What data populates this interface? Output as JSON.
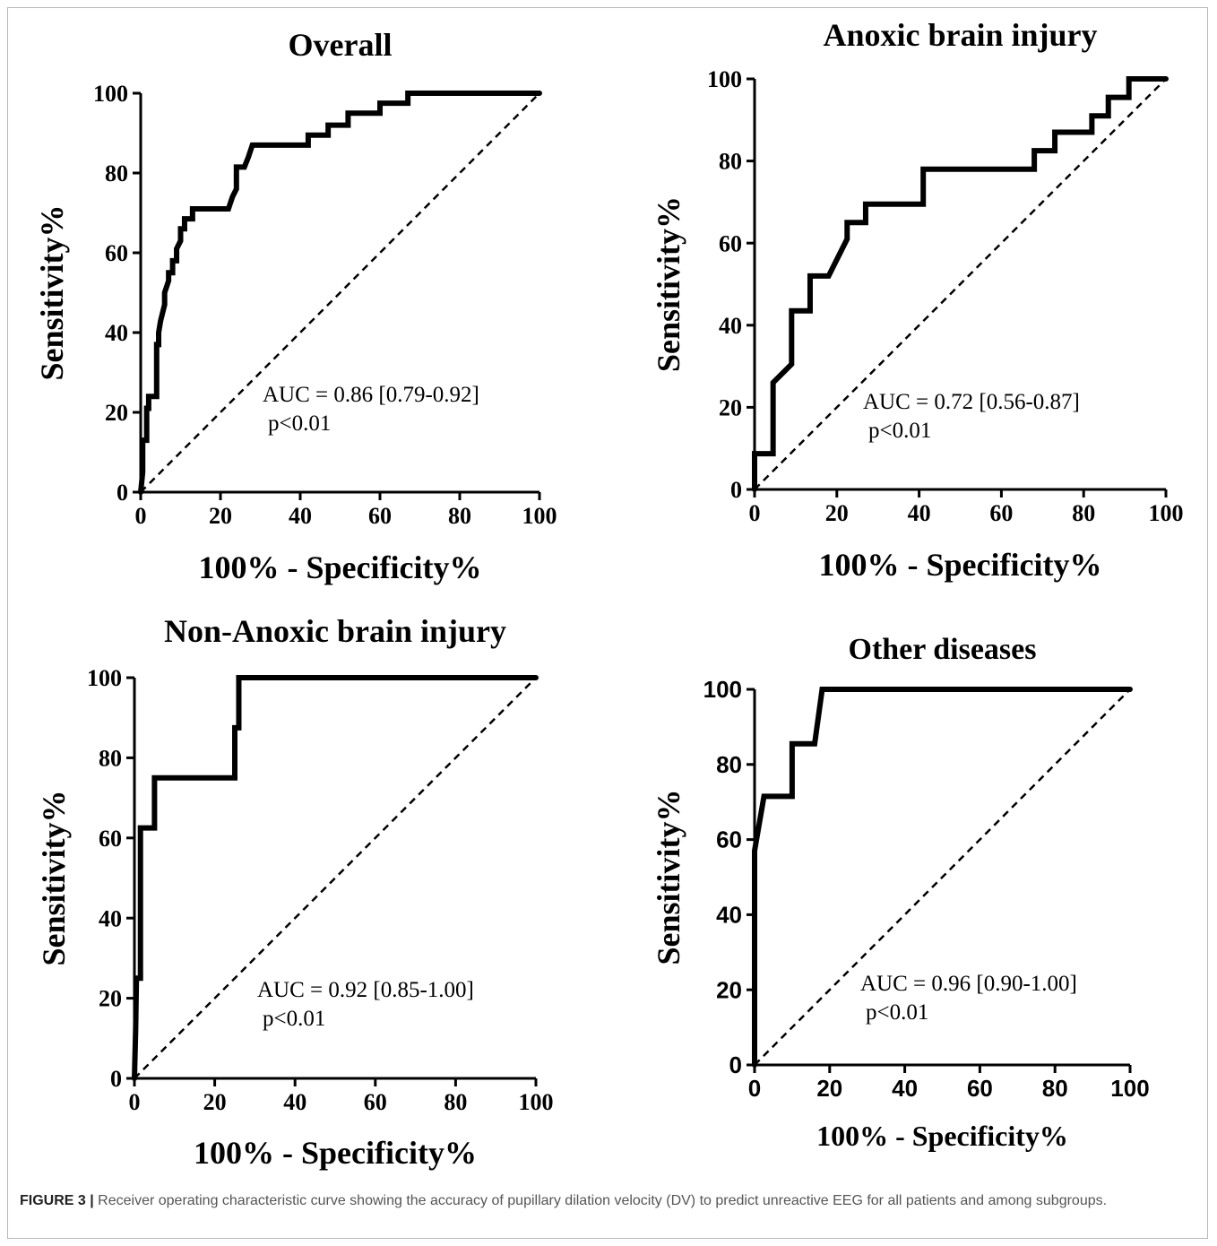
{
  "figure": {
    "label": "FIGURE 3 |",
    "caption": " Receiver operating characteristic curve showing the accuracy of pupillary dilation velocity (DV) to predict unreactive EEG for all patients and among subgroups."
  },
  "chart_data": [
    {
      "type": "line",
      "title": "Overall",
      "xlabel": "100% - Specificity%",
      "ylabel": "Sensitivity%",
      "xlim": [
        0,
        100
      ],
      "ylim": [
        0,
        100
      ],
      "xticks": [
        0,
        20,
        40,
        60,
        80,
        100
      ],
      "yticks": [
        0,
        20,
        40,
        60,
        80,
        100
      ],
      "annotation": [
        "AUC = 0.86 [0.79-0.92]",
        "p<0.01"
      ],
      "series": [
        {
          "x": [
            0,
            0.5,
            0.5,
            1.5,
            1.5,
            2,
            2,
            4,
            4,
            4.5,
            4.5,
            5,
            6,
            6,
            7,
            7,
            8,
            8,
            9,
            9,
            10,
            10,
            11,
            11,
            13,
            13,
            15,
            15,
            22,
            23,
            24,
            24,
            26,
            27,
            28,
            42,
            42,
            45,
            46,
            47,
            47,
            51,
            52,
            52,
            60,
            60,
            67,
            67,
            100
          ],
          "y": [
            0,
            5,
            13,
            13,
            21,
            21,
            24,
            24,
            37,
            37,
            40,
            43,
            47,
            50,
            53,
            55,
            55,
            58,
            58,
            61,
            63,
            66,
            66,
            68.5,
            68.5,
            71,
            71,
            71,
            71,
            74,
            76,
            81.5,
            81.5,
            84,
            87,
            87,
            89.5,
            89.5,
            89.5,
            89.5,
            92,
            92,
            92,
            95,
            95,
            97.5,
            97.5,
            100,
            100
          ]
        },
        {
          "x": [
            0,
            100
          ],
          "y": [
            0,
            100
          ]
        }
      ]
    },
    {
      "type": "line",
      "title": "Anoxic brain injury",
      "xlabel": "100% - Specificity%",
      "ylabel": "Sensitivity%",
      "xlim": [
        0,
        100
      ],
      "ylim": [
        0,
        100
      ],
      "xticks": [
        0,
        20,
        40,
        60,
        80,
        100
      ],
      "yticks": [
        0,
        20,
        40,
        60,
        80,
        100
      ],
      "annotation": [
        "AUC = 0.72 [0.56-0.87]",
        "p<0.01"
      ],
      "series": [
        {
          "x": [
            0,
            0,
            4.5,
            4.5,
            9,
            9,
            13.5,
            13.5,
            18,
            22.5,
            22.5,
            27,
            27,
            41,
            41,
            68,
            68,
            73,
            73,
            82,
            82,
            86,
            86,
            91,
            91,
            100
          ],
          "y": [
            0,
            8.7,
            8.7,
            26,
            30.5,
            43.5,
            43.5,
            52,
            52,
            61,
            65,
            65,
            69.5,
            69.5,
            78,
            78,
            82.5,
            82.5,
            87,
            87,
            91,
            91,
            95.5,
            95.5,
            100,
            100
          ]
        },
        {
          "x": [
            0,
            100
          ],
          "y": [
            0,
            100
          ]
        }
      ]
    },
    {
      "type": "line",
      "title": "Non-Anoxic brain injury",
      "xlabel": "100% - Specificity%",
      "ylabel": "Sensitivity%",
      "xlim": [
        0,
        100
      ],
      "ylim": [
        0,
        100
      ],
      "xticks": [
        0,
        20,
        40,
        60,
        80,
        100
      ],
      "yticks": [
        0,
        20,
        40,
        60,
        80,
        100
      ],
      "annotation": [
        "AUC = 0.92 [0.85-1.00]",
        "p<0.01"
      ],
      "series": [
        {
          "x": [
            0,
            0.3,
            0.5,
            1.5,
            1.5,
            2,
            2,
            5,
            5,
            25,
            25,
            26,
            26,
            100
          ],
          "y": [
            0,
            12,
            25,
            25,
            62.5,
            62.5,
            62.5,
            62.5,
            75,
            75,
            87.5,
            87.5,
            100,
            100
          ]
        },
        {
          "x": [
            0,
            100
          ],
          "y": [
            0,
            100
          ]
        }
      ]
    },
    {
      "type": "line",
      "title": "Other diseases",
      "xlabel": "100% - Specificity%",
      "ylabel": "Sensitivity%",
      "xlim": [
        0,
        100
      ],
      "ylim": [
        0,
        100
      ],
      "xticks": [
        0,
        20,
        40,
        60,
        80,
        100
      ],
      "yticks": [
        0,
        20,
        40,
        60,
        80,
        100
      ],
      "annotation": [
        "AUC = 0.96 [0.90-1.00]",
        "p<0.01"
      ],
      "series": [
        {
          "x": [
            0,
            0,
            2.5,
            10,
            10,
            16,
            18,
            100
          ],
          "y": [
            0,
            57,
            71.5,
            71.5,
            85.5,
            85.5,
            100,
            100
          ]
        },
        {
          "x": [
            0,
            100
          ],
          "y": [
            0,
            100
          ]
        }
      ]
    }
  ]
}
